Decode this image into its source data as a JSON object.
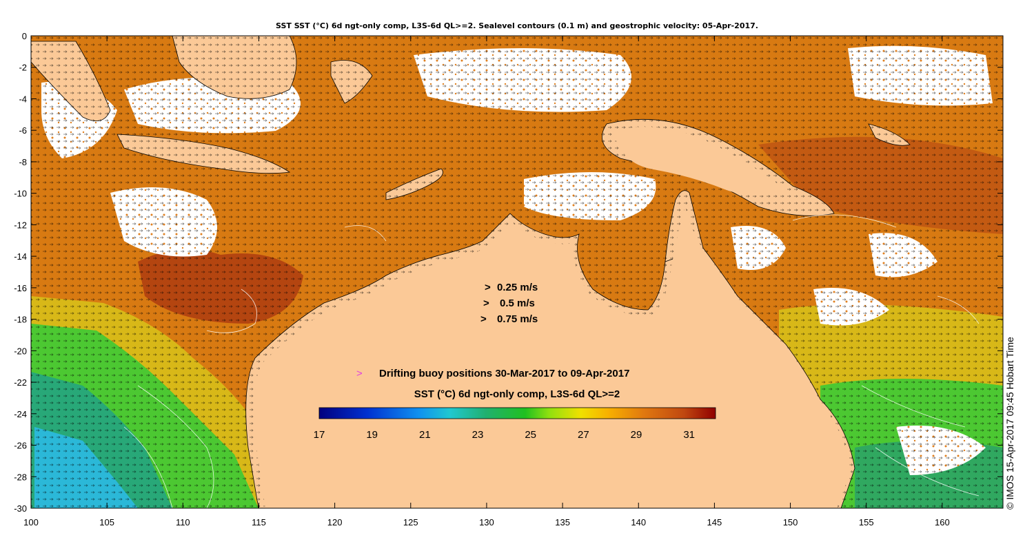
{
  "title": "SST SST (°C) 6d ngt-only comp, L3S-6d QL>=2. Sealevel contours (0.1 m) and geostrophic velocity: 05-Apr-2017.",
  "axes": {
    "x_ticks": [
      "100",
      "105",
      "110",
      "115",
      "120",
      "125",
      "130",
      "135",
      "140",
      "145",
      "150",
      "155",
      "160"
    ],
    "y_ticks": [
      "0",
      "-2",
      "-4",
      "-6",
      "-8",
      "-10",
      "-12",
      "-14",
      "-16",
      "-18",
      "-20",
      "-22",
      "-24",
      "-26",
      "-28",
      "-30"
    ],
    "x_range": [
      100,
      164
    ],
    "y_range": [
      -30,
      0
    ]
  },
  "velocity_legend": {
    "symbol": ">",
    "items": [
      "0.25 m/s",
      "0.5 m/s",
      "0.75 m/s"
    ]
  },
  "buoy_legend": {
    "symbol": ">",
    "text": "Drifting buoy positions 30-Mar-2017 to 09-Apr-2017"
  },
  "colorbar": {
    "label": "SST (°C) 6d ngt-only comp, L3S-6d QL>=2",
    "min": 17,
    "max": 32,
    "ticks": [
      "17",
      "19",
      "21",
      "23",
      "25",
      "27",
      "29",
      "31"
    ]
  },
  "credit": "© IMOS 15-Apr-2017 09:45 Hobart Time",
  "colors": {
    "land": "#fbc997",
    "warm_dark": "#b34a10",
    "warm": "#d4780f",
    "mid": "#f0b020",
    "yellow": "#d8e018",
    "green": "#2fc23a",
    "cyan": "#20b5e0",
    "buoy_marker": "#e040e0"
  }
}
